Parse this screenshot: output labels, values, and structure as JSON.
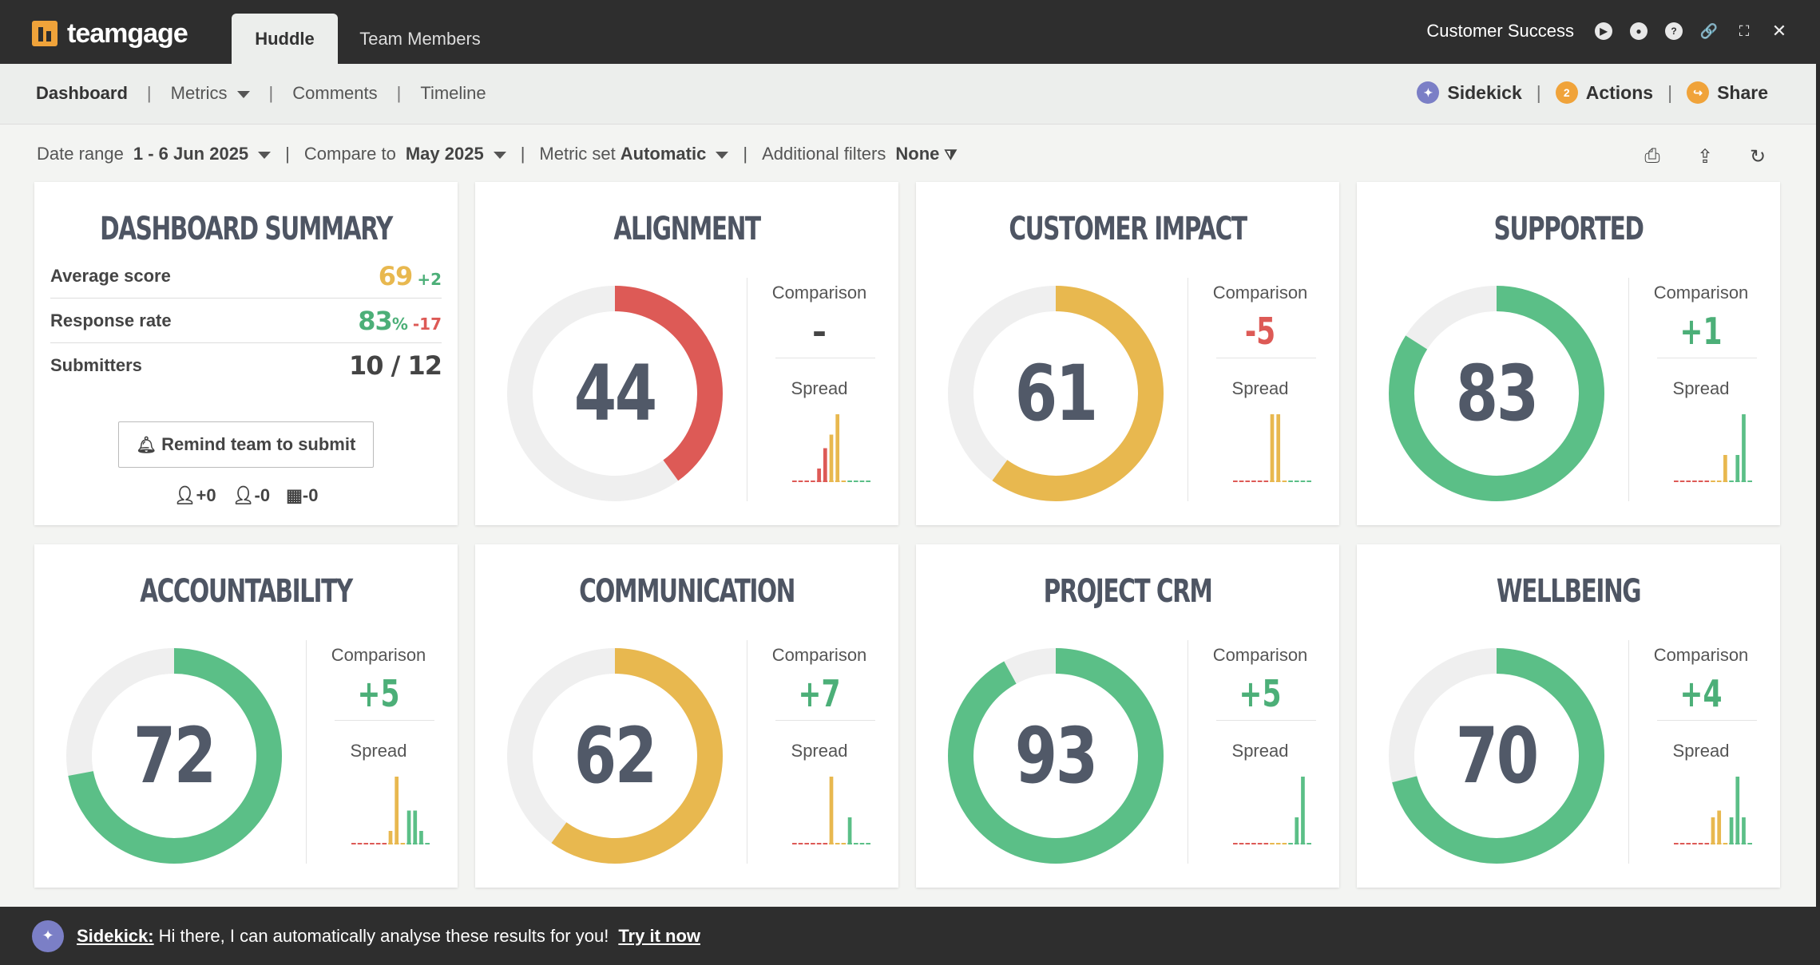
{
  "app": {
    "logo_text": "teamgage",
    "tabs": [
      {
        "label": "Huddle"
      },
      {
        "label": "Team Members"
      }
    ],
    "workspace": "Customer Success"
  },
  "subnav": {
    "items": [
      {
        "label": "Dashboard"
      },
      {
        "label": "Metrics"
      },
      {
        "label": "Comments"
      },
      {
        "label": "Timeline"
      }
    ],
    "sidekick_label": "Sidekick",
    "actions_label": "Actions",
    "actions_count": "2",
    "share_label": "Share"
  },
  "filters": {
    "date_range_label": "Date range",
    "date_range_value": "1 - 6 Jun 2025",
    "compare_label": "Compare to",
    "compare_value": "May 2025",
    "metric_set_label": "Metric set",
    "metric_set_value": "Automatic",
    "additional_label": "Additional filters",
    "additional_value": "None"
  },
  "summary": {
    "title": "DASHBOARD SUMMARY",
    "rows": [
      {
        "label": "Average score",
        "value": "69",
        "delta": "+2",
        "value_color": "#e8b84f",
        "delta_color": "#4caf78"
      },
      {
        "label": "Response rate",
        "value": "83",
        "unit": "%",
        "delta": "-17",
        "value_color": "#4caf78",
        "delta_color": "#dd5a56"
      },
      {
        "label": "Submitters",
        "value": "10 / 12",
        "delta": "",
        "value_color": "#444444",
        "delta_color": "#444444"
      }
    ],
    "remind_button": "Remind team to submit",
    "counts": [
      {
        "icon": "person-add-icon",
        "text": "+0"
      },
      {
        "icon": "person-remove-icon",
        "text": "-0"
      },
      {
        "icon": "building-icon",
        "text": "-0"
      }
    ]
  },
  "labels": {
    "comparison": "Comparison",
    "spread": "Spread"
  },
  "metrics": [
    {
      "title": "ALIGNMENT",
      "score": "44",
      "comparison": "–",
      "color": "#dd5a56",
      "comparison_color": "#444444",
      "spread": [
        0,
        0,
        0,
        0,
        2,
        5,
        7,
        10,
        0,
        0,
        0,
        0,
        0
      ],
      "fill_fraction": 0.4
    },
    {
      "title": "CUSTOMER IMPACT",
      "score": "61",
      "comparison": "-5",
      "color": "#e8b84f",
      "comparison_color": "#dd5a56",
      "spread": [
        0,
        0,
        0,
        0,
        0,
        0,
        10,
        10,
        0,
        0,
        0,
        0,
        0
      ],
      "fill_fraction": 0.6
    },
    {
      "title": "SUPPORTED",
      "score": "83",
      "comparison": "+1",
      "color": "#5bbf87",
      "comparison_color": "#4caf78",
      "spread": [
        0,
        0,
        0,
        0,
        0,
        0,
        0,
        0,
        4,
        0,
        4,
        10,
        0
      ],
      "fill_fraction": 0.84
    },
    {
      "title": "ACCOUNTABILITY",
      "score": "72",
      "comparison": "+5",
      "color": "#5bbf87",
      "comparison_color": "#4caf78",
      "spread": [
        0,
        0,
        0,
        0,
        0,
        0,
        2,
        10,
        0,
        5,
        5,
        2,
        0
      ],
      "fill_fraction": 0.72
    },
    {
      "title": "COMMUNICATION",
      "score": "62",
      "comparison": "+7",
      "color": "#e8b84f",
      "comparison_color": "#4caf78",
      "spread": [
        0,
        0,
        0,
        0,
        0,
        0,
        10,
        0,
        0,
        4,
        0,
        0,
        0
      ],
      "fill_fraction": 0.6
    },
    {
      "title": "PROJECT CRM",
      "score": "93",
      "comparison": "+5",
      "color": "#5bbf87",
      "comparison_color": "#4caf78",
      "spread": [
        0,
        0,
        0,
        0,
        0,
        0,
        0,
        0,
        0,
        0,
        4,
        10,
        0
      ],
      "fill_fraction": 0.92
    },
    {
      "title": "WELLBEING",
      "score": "70",
      "comparison": "+4",
      "color": "#5bbf87",
      "comparison_color": "#4caf78",
      "spread": [
        0,
        0,
        0,
        0,
        0,
        0,
        4,
        5,
        0,
        4,
        10,
        4,
        0
      ],
      "fill_fraction": 0.71
    }
  ],
  "bottombar": {
    "prefix": "Sidekick:",
    "message": "Hi there, I can automatically analyse these results for you!",
    "link": "Try it now"
  }
}
